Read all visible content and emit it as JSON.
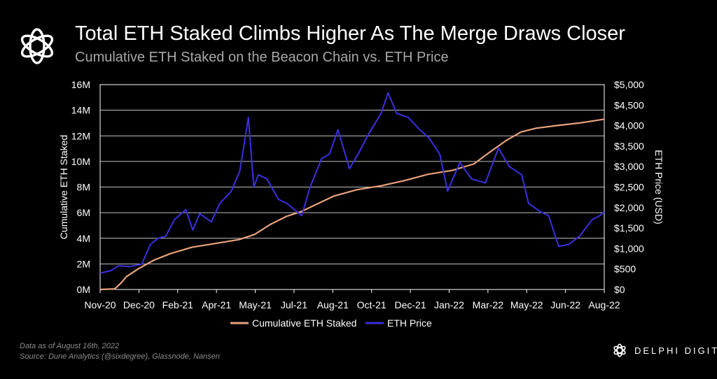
{
  "header": {
    "title": "Total ETH Staked Climbs Higher As The Merge Draws Closer",
    "subtitle": "Cumulative ETH Staked on the Beacon Chain vs. ETH Price"
  },
  "footer": {
    "note_date": "Data as of August 16th, 2022",
    "note_source": "Source: Dune Analytics (@sixdegree), Glassnode, Nansen",
    "brand": "DELPHI DIGITAL"
  },
  "colors": {
    "background": "#000000",
    "staked_line": "#e8a27c",
    "price_line": "#3b2fe0",
    "grid": "#ffffff",
    "subtitle": "#a8a8a8"
  },
  "chart_data": {
    "type": "line",
    "x_ticks": [
      "Nov-20",
      "Dec-20",
      "Feb-21",
      "Apr-21",
      "May-21",
      "Jul-21",
      "Aug-21",
      "Oct-21",
      "Dec-21",
      "Jan-22",
      "Mar-22",
      "May-22",
      "Jun-22",
      "Aug-22"
    ],
    "left_axis": {
      "label": "Cumulative ETH Staked",
      "ticks": [
        "0M",
        "2M",
        "4M",
        "6M",
        "8M",
        "10M",
        "12M",
        "14M",
        "16M"
      ],
      "ylim": [
        0,
        16
      ]
    },
    "right_axis": {
      "label": "ETH Price (USD)",
      "ticks": [
        "$0",
        "$500",
        "$1,000",
        "$1,500",
        "$2,000",
        "$2,500",
        "$3,000",
        "$3,500",
        "$4,000",
        "$4,500",
        "$5,000"
      ],
      "ylim": [
        0,
        5000
      ]
    },
    "legend": "bottom-center",
    "grid": true,
    "series": [
      {
        "name": "Cumulative ETH Staked",
        "axis": "left",
        "unit": "M ETH",
        "points": [
          [
            "2020-11-01",
            0.0
          ],
          [
            "2020-11-20",
            0.05
          ],
          [
            "2020-11-28",
            0.5
          ],
          [
            "2020-12-05",
            1.0
          ],
          [
            "2020-12-20",
            1.6
          ],
          [
            "2021-01-10",
            2.3
          ],
          [
            "2021-01-31",
            2.8
          ],
          [
            "2021-02-28",
            3.3
          ],
          [
            "2021-03-31",
            3.6
          ],
          [
            "2021-04-30",
            3.9
          ],
          [
            "2021-05-20",
            4.3
          ],
          [
            "2021-06-10",
            5.1
          ],
          [
            "2021-06-30",
            5.7
          ],
          [
            "2021-07-20",
            6.1
          ],
          [
            "2021-08-10",
            6.7
          ],
          [
            "2021-08-31",
            7.3
          ],
          [
            "2021-09-30",
            7.8
          ],
          [
            "2021-10-31",
            8.1
          ],
          [
            "2021-11-30",
            8.5
          ],
          [
            "2021-12-31",
            9.0
          ],
          [
            "2022-01-31",
            9.3
          ],
          [
            "2022-02-28",
            9.8
          ],
          [
            "2022-03-20",
            10.7
          ],
          [
            "2022-04-10",
            11.6
          ],
          [
            "2022-04-30",
            12.3
          ],
          [
            "2022-05-20",
            12.6
          ],
          [
            "2022-06-15",
            12.8
          ],
          [
            "2022-07-15",
            13.0
          ],
          [
            "2022-08-16",
            13.3
          ]
        ]
      },
      {
        "name": "ETH Price",
        "axis": "right",
        "unit": "USD",
        "points": [
          [
            "2020-11-01",
            400
          ],
          [
            "2020-11-15",
            460
          ],
          [
            "2020-11-25",
            580
          ],
          [
            "2020-12-10",
            560
          ],
          [
            "2020-12-25",
            620
          ],
          [
            "2021-01-05",
            1100
          ],
          [
            "2021-01-15",
            1250
          ],
          [
            "2021-01-25",
            1300
          ],
          [
            "2021-02-05",
            1700
          ],
          [
            "2021-02-20",
            1950
          ],
          [
            "2021-03-01",
            1450
          ],
          [
            "2021-03-10",
            1850
          ],
          [
            "2021-03-25",
            1650
          ],
          [
            "2021-04-05",
            2100
          ],
          [
            "2021-04-20",
            2400
          ],
          [
            "2021-05-01",
            2900
          ],
          [
            "2021-05-12",
            4200
          ],
          [
            "2021-05-19",
            2500
          ],
          [
            "2021-05-25",
            2800
          ],
          [
            "2021-06-05",
            2700
          ],
          [
            "2021-06-20",
            2200
          ],
          [
            "2021-07-01",
            2100
          ],
          [
            "2021-07-20",
            1800
          ],
          [
            "2021-07-31",
            2500
          ],
          [
            "2021-08-15",
            3200
          ],
          [
            "2021-08-25",
            3300
          ],
          [
            "2021-09-05",
            3900
          ],
          [
            "2021-09-20",
            2950
          ],
          [
            "2021-10-01",
            3300
          ],
          [
            "2021-10-15",
            3800
          ],
          [
            "2021-10-31",
            4300
          ],
          [
            "2021-11-09",
            4800
          ],
          [
            "2021-11-20",
            4300
          ],
          [
            "2021-12-05",
            4200
          ],
          [
            "2021-12-20",
            3900
          ],
          [
            "2022-01-01",
            3700
          ],
          [
            "2022-01-15",
            3300
          ],
          [
            "2022-01-25",
            2400
          ],
          [
            "2022-02-10",
            3100
          ],
          [
            "2022-02-25",
            2700
          ],
          [
            "2022-03-15",
            2600
          ],
          [
            "2022-04-01",
            3450
          ],
          [
            "2022-04-15",
            3000
          ],
          [
            "2022-05-01",
            2800
          ],
          [
            "2022-05-10",
            2100
          ],
          [
            "2022-05-25",
            1900
          ],
          [
            "2022-06-05",
            1800
          ],
          [
            "2022-06-18",
            1050
          ],
          [
            "2022-07-01",
            1100
          ],
          [
            "2022-07-15",
            1300
          ],
          [
            "2022-07-31",
            1700
          ],
          [
            "2022-08-10",
            1800
          ],
          [
            "2022-08-16",
            1900
          ]
        ]
      }
    ]
  }
}
